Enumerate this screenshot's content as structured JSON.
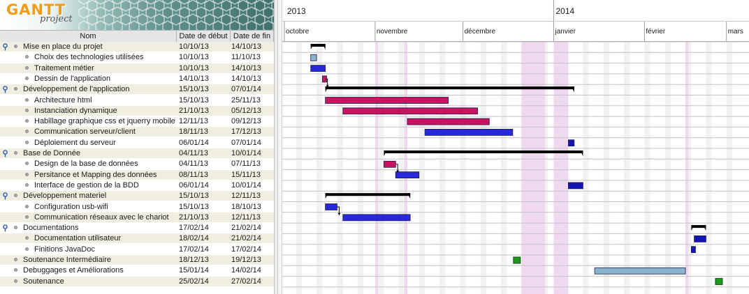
{
  "app": {
    "logo": "GANTT",
    "logo_sub": "project"
  },
  "table": {
    "headers": {
      "name": "Nom",
      "start": "Date de début",
      "end": "Date de fin"
    },
    "rows": [
      {
        "name": "Mise en place du projet",
        "start": "10/10/13",
        "end": "14/10/13",
        "level": 0,
        "group": true
      },
      {
        "name": "Choix des technologies utilisées",
        "start": "10/10/13",
        "end": "11/10/13",
        "level": 1,
        "group": false
      },
      {
        "name": "Traitement métier",
        "start": "10/10/13",
        "end": "14/10/13",
        "level": 1,
        "group": false
      },
      {
        "name": "Dessin de l'application",
        "start": "14/10/13",
        "end": "14/10/13",
        "level": 1,
        "group": false
      },
      {
        "name": "Développement de l'application",
        "start": "15/10/13",
        "end": "07/01/14",
        "level": 0,
        "group": true
      },
      {
        "name": "Architecture html",
        "start": "15/10/13",
        "end": "25/11/13",
        "level": 1,
        "group": false
      },
      {
        "name": "Instanciation dynamique",
        "start": "21/10/13",
        "end": "05/12/13",
        "level": 1,
        "group": false
      },
      {
        "name": "Habillage graphique css et jquerry mobile",
        "start": "12/11/13",
        "end": "09/12/13",
        "level": 1,
        "group": false
      },
      {
        "name": "Communication serveur/client",
        "start": "18/11/13",
        "end": "17/12/13",
        "level": 1,
        "group": false
      },
      {
        "name": "Déploiement du serveur",
        "start": "06/01/14",
        "end": "07/01/14",
        "level": 1,
        "group": false
      },
      {
        "name": "Base de Donnée",
        "start": "04/11/13",
        "end": "10/01/14",
        "level": 0,
        "group": true
      },
      {
        "name": "Design de la base de données",
        "start": "04/11/13",
        "end": "07/11/13",
        "level": 1,
        "group": false
      },
      {
        "name": "Persitance et Mapping des données",
        "start": "08/11/13",
        "end": "15/11/13",
        "level": 1,
        "group": false
      },
      {
        "name": "Interface de gestion de la BDD",
        "start": "06/01/14",
        "end": "10/01/14",
        "level": 1,
        "group": false
      },
      {
        "name": "Développement materiel",
        "start": "15/10/13",
        "end": "12/11/13",
        "level": 0,
        "group": true
      },
      {
        "name": "Configuration usb-wifi",
        "start": "15/10/13",
        "end": "18/10/13",
        "level": 1,
        "group": false
      },
      {
        "name": "Communication réseaux avec le chariot",
        "start": "21/10/13",
        "end": "12/11/13",
        "level": 1,
        "group": false
      },
      {
        "name": "Documentations",
        "start": "17/02/14",
        "end": "21/02/14",
        "level": 0,
        "group": true
      },
      {
        "name": "Documentation utilisateur",
        "start": "18/02/14",
        "end": "21/02/14",
        "level": 1,
        "group": false
      },
      {
        "name": "Finitions JavaDoc",
        "start": "17/02/14",
        "end": "17/02/14",
        "level": 1,
        "group": false
      },
      {
        "name": "Soutenance Intermédiaire",
        "start": "18/12/13",
        "end": "19/12/13",
        "level": 0,
        "group": false
      },
      {
        "name": "Debuggages et Améliorations",
        "start": "15/01/14",
        "end": "14/02/14",
        "level": 0,
        "group": false
      },
      {
        "name": "Soutenance",
        "start": "25/02/14",
        "end": "27/02/14",
        "level": 0,
        "group": false
      }
    ]
  },
  "timeline": {
    "years": [
      {
        "label": "2013"
      },
      {
        "label": "2014"
      }
    ],
    "months": [
      {
        "label": "octobre"
      },
      {
        "label": "novembre"
      },
      {
        "label": "décembre"
      },
      {
        "label": "janvier"
      },
      {
        "label": "février"
      },
      {
        "label": "mars"
      }
    ],
    "holiday_color": "#eed9ee",
    "weekend_color": "#f2f2f2"
  },
  "colors": {
    "summary_bar": "#000000",
    "magenta": "#c8145e",
    "blue": "#2828d8",
    "dark_blue": "#1414b4",
    "light_blue": "#8ab4cc",
    "green": "#1c9c1c"
  },
  "bars": [
    {
      "row": 0,
      "kind": "summary"
    },
    {
      "row": 1,
      "kind": "task",
      "color": "#8ab4cc"
    },
    {
      "row": 2,
      "kind": "task",
      "color": "#2828d8"
    },
    {
      "row": 3,
      "kind": "task",
      "color": "#c8145e"
    },
    {
      "row": 4,
      "kind": "summary"
    },
    {
      "row": 5,
      "kind": "task",
      "color": "#c8145e"
    },
    {
      "row": 6,
      "kind": "task",
      "color": "#c8145e"
    },
    {
      "row": 7,
      "kind": "task",
      "color": "#c8145e"
    },
    {
      "row": 8,
      "kind": "task",
      "color": "#2828d8"
    },
    {
      "row": 9,
      "kind": "task",
      "color": "#1414b4"
    },
    {
      "row": 10,
      "kind": "summary"
    },
    {
      "row": 11,
      "kind": "task",
      "color": "#c8145e"
    },
    {
      "row": 12,
      "kind": "task",
      "color": "#2828d8"
    },
    {
      "row": 13,
      "kind": "task",
      "color": "#1414b4"
    },
    {
      "row": 14,
      "kind": "summary"
    },
    {
      "row": 15,
      "kind": "task",
      "color": "#2828d8"
    },
    {
      "row": 16,
      "kind": "task",
      "color": "#2828d8"
    },
    {
      "row": 17,
      "kind": "summary"
    },
    {
      "row": 18,
      "kind": "task",
      "color": "#1414b4"
    },
    {
      "row": 19,
      "kind": "task",
      "color": "#1414b4"
    },
    {
      "row": 20,
      "kind": "milestone",
      "color": "#1c9c1c"
    },
    {
      "row": 21,
      "kind": "task",
      "color": "#8ab4cc"
    },
    {
      "row": 22,
      "kind": "milestone",
      "color": "#1c9c1c"
    }
  ],
  "dependencies": [
    {
      "from_row": 3,
      "to_row": 4
    },
    {
      "from_row": 11,
      "to_row": 12
    },
    {
      "from_row": 15,
      "to_row": 16
    }
  ]
}
